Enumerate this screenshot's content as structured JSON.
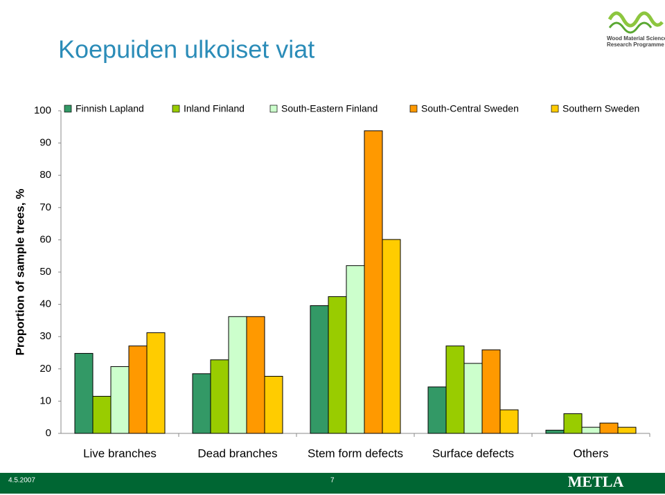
{
  "slide": {
    "title": "Koepuiden ulkoiset viat",
    "logo_lines": [
      "Wood Material Science",
      "Research Programme"
    ],
    "footer": {
      "date": "4.5.2007",
      "page": "7",
      "brand": "METLA"
    }
  },
  "chart_data": {
    "type": "bar",
    "y_label": "Proportion of sample trees, %",
    "categories": [
      "Live branches",
      "Dead branches",
      "Stem form defects",
      "Surface defects",
      "Others"
    ],
    "series": [
      {
        "name": "Finnish Lapland",
        "color": "#339966",
        "values": [
          24.8,
          18.5,
          39.6,
          14.4,
          1.0
        ]
      },
      {
        "name": "Inland Finland",
        "color": "#99cc00",
        "values": [
          11.5,
          22.8,
          42.4,
          27.1,
          6.1
        ]
      },
      {
        "name": "South-Eastern Finland",
        "color": "#ccffcc",
        "values": [
          20.7,
          36.2,
          52.0,
          21.7,
          1.9
        ]
      },
      {
        "name": "South-Central Sweden",
        "color": "#ff9900",
        "values": [
          27.1,
          36.2,
          93.8,
          25.9,
          3.2
        ]
      },
      {
        "name": "Southern Sweden",
        "color": "#ffcc00",
        "values": [
          31.2,
          17.7,
          60.1,
          7.3,
          1.9
        ]
      }
    ],
    "ylim": [
      0,
      100
    ],
    "yticks": [
      0,
      10,
      20,
      30,
      40,
      50,
      60,
      70,
      80,
      90,
      100
    ],
    "grid": false,
    "legend": "top"
  }
}
